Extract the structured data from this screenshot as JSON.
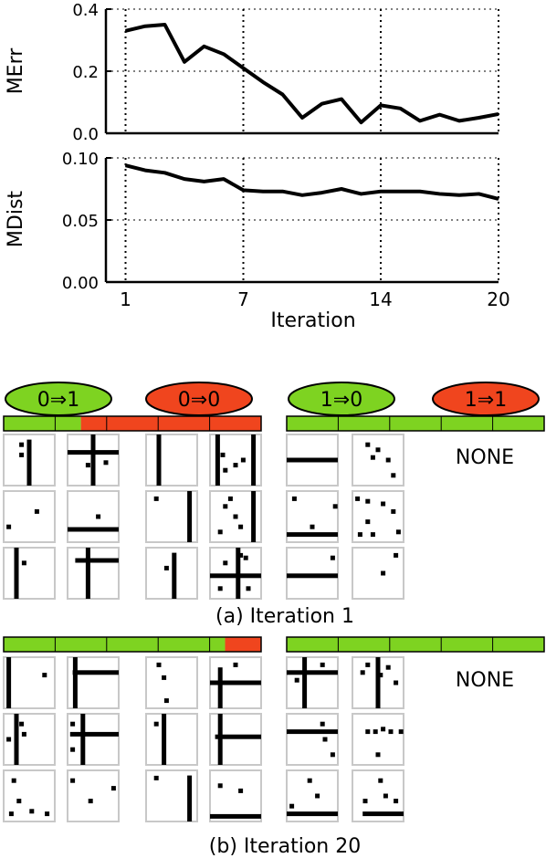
{
  "chart_data": [
    {
      "type": "line",
      "ylabel": "MErr",
      "xlabel": "",
      "xlim": [
        0,
        20
      ],
      "ylim": [
        0,
        0.4
      ],
      "yticks": [
        "0.0",
        "0.2",
        "0.4"
      ],
      "xticks": [
        1,
        7,
        14,
        20
      ],
      "grid": "dotted vertical at 1, 7, 14, 20; dotted horizontal at ticks",
      "series": [
        {
          "x": [
            1,
            2,
            3,
            4,
            5,
            6,
            7,
            8,
            9,
            10,
            11,
            12,
            13,
            14,
            15,
            16,
            17,
            18,
            19,
            20
          ],
          "values": [
            0.33,
            0.345,
            0.35,
            0.23,
            0.28,
            0.255,
            0.21,
            0.165,
            0.125,
            0.05,
            0.095,
            0.11,
            0.035,
            0.09,
            0.08,
            0.04,
            0.06,
            0.04,
            0.05,
            0.062
          ]
        }
      ]
    },
    {
      "type": "line",
      "ylabel": "MDist",
      "xlabel": "Iteration",
      "xlim": [
        0,
        20
      ],
      "ylim": [
        0,
        0.1
      ],
      "yticks": [
        "0.00",
        "0.05",
        "0.10"
      ],
      "xticks": [
        "1",
        "7",
        "14",
        "20"
      ],
      "grid": "dotted vertical at 1, 7, 14, 20; dotted horizontal at ticks",
      "series": [
        {
          "x": [
            1,
            2,
            3,
            4,
            5,
            6,
            7,
            8,
            9,
            10,
            11,
            12,
            13,
            14,
            15,
            16,
            17,
            18,
            19,
            20
          ],
          "values": [
            0.094,
            0.09,
            0.088,
            0.083,
            0.081,
            0.083,
            0.074,
            0.073,
            0.073,
            0.07,
            0.072,
            0.075,
            0.071,
            0.073,
            0.073,
            0.073,
            0.071,
            0.07,
            0.071,
            0.067
          ]
        }
      ]
    }
  ],
  "legend": {
    "labels": [
      "0⇒1",
      "0⇒0",
      "1⇒0",
      "1⇒1"
    ],
    "colors": [
      "#7ed321",
      "#f0451e",
      "#7ed321",
      "#f0451e"
    ]
  },
  "iter1": {
    "caption": "(a) Iteration 1",
    "left_bar_green_fraction": 0.3,
    "right_bar_green_fraction": 1.0,
    "none_label": "NONE"
  },
  "iter20": {
    "caption": "(b) Iteration 20",
    "left_bar_green_fraction": 0.86,
    "right_bar_green_fraction": 1.0,
    "none_label": "NONE"
  },
  "colors": {
    "green": "#7ed321",
    "red": "#f0451e",
    "tile_border": "#c8c8c8"
  }
}
